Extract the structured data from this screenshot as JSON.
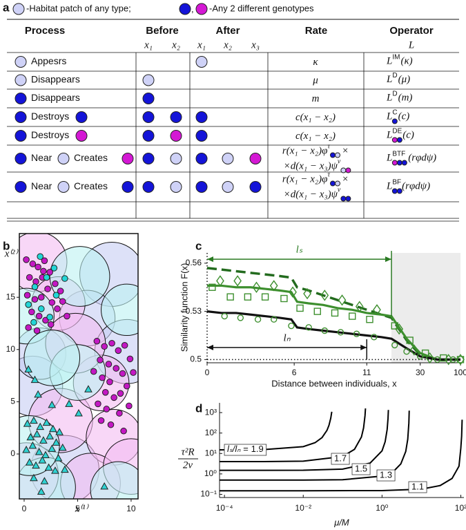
{
  "panel_labels": [
    "a",
    "b",
    "c",
    "d"
  ],
  "legend_note": {
    "text1": "-Habitat patch of any type;",
    "sep": ",",
    "text2": "-Any 2 different genotypes"
  },
  "table": {
    "header": [
      "Process",
      "Before",
      "After",
      "Rate",
      "Operator"
    ],
    "subheader": [
      "x₁",
      "x₂",
      "x₁",
      "x₂",
      "x₃",
      "L"
    ],
    "rows": [
      {
        "process": [
          "Appesrs"
        ],
        "rate": "κ",
        "operator": {
          "base": "L",
          "sup": "IM",
          "arg": "(κ)"
        }
      },
      {
        "process": [
          "Disappears"
        ],
        "rate": "μ",
        "operator": {
          "base": "L",
          "sup": "D",
          "arg": "(μ)"
        }
      },
      {
        "process": [
          "Disappears"
        ],
        "rate": "m",
        "operator": {
          "base": "L",
          "sup": "D",
          "arg": "(m)"
        }
      },
      {
        "process": [
          "Destroys"
        ],
        "rate": "c(x₁ − x₂)",
        "operator": {
          "base": "L",
          "sup": "C",
          "arg": "(c)"
        }
      },
      {
        "process": [
          "Destroys"
        ],
        "rate": "c(x₁ − x₂)",
        "operator": {
          "base": "L",
          "sup": "DE",
          "arg": "(c)"
        }
      },
      {
        "process": [
          "Near",
          "Creates"
        ],
        "rate": {
          "line1": "r(x₁ − x₂)φ",
          "sup1": "τ",
          "end1": "×",
          "line2": "×d(x₁ − x₃)ψ",
          "sup2": "ν"
        },
        "operator": {
          "base": "L",
          "sup": "BTF",
          "arg": "(rφdψ)"
        }
      },
      {
        "process": [
          "Near",
          "Creates"
        ],
        "rate": {
          "line1": "r(x₁ − x₂)φ",
          "sup1": "τ",
          "end1": "×",
          "line2": "×d(x₁ − x₃)ψ",
          "sup2": "ν"
        },
        "operator": {
          "base": "L",
          "sup": "BF",
          "arg": "(rφdψ)"
        }
      }
    ]
  },
  "chart_data": [
    {
      "type": "scatter",
      "xlim": [
        -0.45,
        10.65
      ],
      "ylim": [
        -4.3,
        21.1
      ],
      "xticks": [
        0,
        5,
        10
      ],
      "yticks": [
        0,
        5,
        10,
        15
      ],
      "xlabel": "x⁽¹⁾",
      "ylabel": "x⁽²⁾",
      "patches": [
        {
          "color": "#c6cdf4",
          "x": [
            8.2,
            0.8,
            5.9,
            9.6,
            3.8,
            1.5
          ],
          "y": [
            17.2,
            6.5,
            13.0,
            9.8,
            -1.5,
            9.6
          ],
          "r": [
            3.0,
            2.8,
            2.6,
            3.0,
            3.2,
            2.4
          ]
        },
        {
          "color": "#f3bdf2",
          "x": [
            1.2,
            3.4,
            8.4,
            6.2,
            10.0,
            7.2,
            3.2,
            4.8,
            0.2
          ],
          "y": [
            18.4,
            3.2,
            1.6,
            -2.8,
            -1.2,
            6.8,
            14.4,
            10.6,
            -2.0
          ],
          "r": [
            2.8,
            3.0,
            2.6,
            2.8,
            2.6,
            2.6,
            2.5,
            2.8,
            3.0
          ]
        },
        {
          "color": "#bdf1f1",
          "x": [
            0.2,
            5.0,
            2.0,
            8.8,
            0.5,
            5.2,
            9.6,
            2.6
          ],
          "y": [
            13.2,
            7.8,
            -3.2,
            -3.4,
            0.8,
            17.0,
            13.8,
            9.2
          ],
          "r": [
            2.6,
            2.6,
            2.8,
            2.6,
            2.8,
            2.8,
            2.4,
            2.6
          ]
        }
      ],
      "series": [
        {
          "marker": "circle",
          "color": "#c318c3",
          "x": [
            0.2,
            0.8,
            1.3,
            1.9,
            2.4,
            0.5,
            1.1,
            1.7,
            2.2,
            2.9,
            3.4,
            0.3,
            1.0,
            1.6,
            2.6,
            3.1,
            0.7,
            1.4,
            2.0,
            3.6,
            0.4,
            1.2,
            2.5,
            4.0,
            1.8,
            6.8,
            7.5,
            8.2,
            8.8,
            9.4,
            9.9,
            7.1,
            7.9,
            8.6,
            9.2,
            6.5,
            7.3,
            8.0,
            9.6,
            10.2,
            7.6,
            8.4,
            9.0,
            6.9,
            7.7,
            8.9,
            9.8,
            7.2,
            8.1,
            9.3
          ],
          "y": [
            18.6,
            18.2,
            17.9,
            18.5,
            17.4,
            16.9,
            16.5,
            16.9,
            15.8,
            16.3,
            15.6,
            15.2,
            14.8,
            15.0,
            14.5,
            13.9,
            13.6,
            13.2,
            12.8,
            14.6,
            12.1,
            11.8,
            12.4,
            13.2,
            17.5,
            10.8,
            10.3,
            10.6,
            9.9,
            10.4,
            9.1,
            9.0,
            8.6,
            8.2,
            7.7,
            7.9,
            7.3,
            6.9,
            6.5,
            7.8,
            5.9,
            5.4,
            5.8,
            4.8,
            4.3,
            3.9,
            4.6,
            3.2,
            2.8,
            2.2
          ]
        },
        {
          "marker": "circle",
          "color": "#22d6d6",
          "x": [
            1.0,
            2.1,
            2.8,
            0.4,
            1.6,
            3.0,
            2.4,
            0.9,
            3.8,
            1.5
          ],
          "y": [
            16.0,
            16.9,
            17.8,
            14.3,
            13.9,
            15.2,
            13.1,
            12.6,
            16.8,
            18.9
          ]
        },
        {
          "marker": "triangle",
          "color": "#2fd2d2",
          "x": [
            0.3,
            0.9,
            1.5,
            2.1,
            2.7,
            3.3,
            0.6,
            1.2,
            1.8,
            2.4,
            3.0,
            3.6,
            0.2,
            0.8,
            1.4,
            2.0,
            2.6,
            3.2,
            0.5,
            1.1,
            1.7,
            2.3,
            2.9,
            0.9,
            1.9,
            1.3,
            4.2,
            5.1,
            6.0,
            1.0,
            2.6,
            0.4,
            7.5,
            3.8,
            1.6
          ],
          "y": [
            2.9,
            3.2,
            2.6,
            3.0,
            2.4,
            2.1,
            1.6,
            1.9,
            1.3,
            1.7,
            1.1,
            0.6,
            0.4,
            0.8,
            0.2,
            -0.1,
            0.5,
            -0.4,
            -0.8,
            -1.1,
            -0.6,
            -1.3,
            -1.6,
            -2.3,
            -2.6,
            5.7,
            4.8,
            3.9,
            6.2,
            7.1,
            4.7,
            8.1,
            -3.1,
            -1.5,
            -3.6
          ]
        }
      ]
    },
    {
      "type": "line",
      "xscale": "linear-log",
      "xlim": [
        0,
        100
      ],
      "ylim": [
        0.498,
        0.5664
      ],
      "xticks": [
        0,
        6,
        11,
        30,
        100
      ],
      "yticks": [
        0.5,
        0.53,
        0.56
      ],
      "shade_from": 12.7,
      "ref_lines": {
        "x": 0,
        "y": 0.5
      },
      "xlabel": "Distance between individuals, x",
      "ylabel": "Similarity function F(x)",
      "series": [
        {
          "style": "dashed",
          "color": "#236b1e",
          "x": [
            0,
            1,
            2,
            3,
            4,
            5,
            5.8,
            6.2,
            7,
            8,
            9,
            10,
            11,
            12,
            12.7,
            20,
            30,
            50,
            100
          ],
          "values": [
            0.557,
            0.556,
            0.555,
            0.554,
            0.553,
            0.552,
            0.551,
            0.545,
            0.543,
            0.54,
            0.537,
            0.534,
            0.531,
            0.528,
            0.526,
            0.512,
            0.503,
            0.5,
            0.5
          ]
        },
        {
          "style": "solid",
          "color": "#3d8f2e",
          "x": [
            0,
            1,
            2,
            3,
            4,
            5,
            5.8,
            6.2,
            7,
            8,
            9,
            10,
            11,
            12,
            12.7,
            20,
            30,
            50,
            100
          ],
          "values": [
            0.546,
            0.546,
            0.545,
            0.545,
            0.544,
            0.543,
            0.542,
            0.536,
            0.535,
            0.534,
            0.532,
            0.531,
            0.529,
            0.528,
            0.527,
            0.513,
            0.504,
            0.5,
            0.5
          ]
        },
        {
          "style": "solid",
          "color": "#111111",
          "x": [
            0,
            1,
            2,
            3,
            4,
            5,
            5.8,
            6.2,
            7,
            8,
            9,
            10,
            11,
            12,
            12.7,
            20,
            30,
            50,
            100
          ],
          "values": [
            0.53,
            0.529,
            0.529,
            0.528,
            0.527,
            0.526,
            0.525,
            0.52,
            0.519,
            0.518,
            0.517,
            0.516,
            0.515,
            0.514,
            0.513,
            0.507,
            0.502,
            0.5,
            0.5
          ]
        },
        {
          "style": "diamond",
          "color": "#3d8f2e",
          "x": [
            0.9,
            2.1,
            3.4,
            4.6,
            5.9,
            6.9,
            8.1,
            9.3,
            10.5,
            11.7,
            16,
            25,
            40,
            70,
            100
          ],
          "values": [
            0.549,
            0.549,
            0.545,
            0.546,
            0.542,
            0.541,
            0.54,
            0.537,
            0.533,
            0.531,
            0.519,
            0.506,
            0.501,
            0.5,
            0.5
          ]
        },
        {
          "style": "square",
          "color": "#3d8f2e",
          "x": [
            0.35,
            1.6,
            2.8,
            4.0,
            5.3,
            6.4,
            7.6,
            8.8,
            10,
            11.2,
            14,
            22,
            35,
            60,
            100
          ],
          "values": [
            0.545,
            0.539,
            0.539,
            0.539,
            0.538,
            0.532,
            0.53,
            0.529,
            0.527,
            0.525,
            0.521,
            0.512,
            0.504,
            0.501,
            0.5
          ]
        },
        {
          "style": "circle",
          "color": "#3d8f2e",
          "x": [
            1.2,
            2.3,
            3.5,
            4.6,
            5.8,
            7,
            8.1,
            9.2,
            10.3,
            11.5,
            14,
            20,
            30,
            50,
            80
          ],
          "values": [
            0.527,
            0.526,
            0.525,
            0.525,
            0.521,
            0.52,
            0.518,
            0.517,
            0.516,
            0.514,
            0.509,
            0.505,
            0.502,
            0.5,
            0.5
          ]
        }
      ],
      "annotations": [
        {
          "label": "lₛ",
          "color": "#2a7a22",
          "x": [
            0,
            12.7
          ],
          "y": 0.5625,
          "drop_to": 0.527
        },
        {
          "label": "lₙ",
          "color": "#111111",
          "x": [
            0,
            11
          ],
          "y": 0.5075,
          "drop_to": 0.5
        }
      ]
    },
    {
      "type": "line",
      "xscale": "log",
      "yscale": "log",
      "color": "#000000",
      "xlim": [
        7.5e-05,
        120
      ],
      "ylim": [
        0.07,
        3000
      ],
      "xticks": [
        {
          "value": 0.0001,
          "label": "10⁻⁴"
        },
        {
          "value": 0.01,
          "label": "10⁻²"
        },
        {
          "value": 1,
          "label": "10⁰"
        },
        {
          "value": 100,
          "label": "10²"
        }
      ],
      "yticks": [
        {
          "value": 0.1,
          "label": "10⁻¹"
        },
        {
          "value": 1,
          "label": "10⁰"
        },
        {
          "value": 10,
          "label": "10¹"
        },
        {
          "value": 100,
          "label": "10²"
        },
        {
          "value": 1000,
          "label": "10³"
        }
      ],
      "xlabel": "μ/M",
      "ylabel": {
        "numerator": "τ²R",
        "denominator": "2ν"
      },
      "ratio_label": "lₛ/lₙ =",
      "series": [
        {
          "name": "1.9",
          "x": [
            7.5e-05,
            0.001,
            0.01,
            0.02,
            0.03,
            0.04,
            0.045,
            0.05,
            0.053
          ],
          "values": [
            15,
            15.5,
            21.6,
            33.8,
            60,
            135,
            240,
            540,
            1100
          ]
        },
        {
          "name": "1.7",
          "x": [
            7.5e-05,
            0.001,
            0.01,
            0.1,
            0.2,
            0.3,
            0.34,
            0.37,
            0.38
          ],
          "values": [
            4,
            4,
            4.2,
            7.1,
            16,
            64,
            178,
            711,
            1600
          ]
        },
        {
          "name": "1.5",
          "x": [
            7.5e-05,
            0.001,
            0.01,
            0.1,
            0.5,
            1,
            1.2,
            1.35,
            1.42,
            1.45
          ],
          "values": [
            1.5,
            1.5,
            1.52,
            1.72,
            3.4,
            13.5,
            37.5,
            150,
            528,
            1350
          ]
        },
        {
          "name": "1.3",
          "x": [
            7.5e-05,
            0.01,
            0.1,
            1,
            2,
            3,
            4,
            4.5,
            4.8,
            4.9
          ],
          "values": [
            0.5,
            0.5,
            0.52,
            0.78,
            1.39,
            3.1,
            12.5,
            50,
            312,
            1250
          ]
        },
        {
          "name": "1.1",
          "x": [
            7.5e-05,
            0.01,
            1,
            10,
            30,
            60,
            90,
            100,
            105,
            108
          ],
          "values": [
            0.15,
            0.15,
            0.153,
            0.18,
            0.27,
            0.6,
            2.4,
            18,
            72,
            450
          ]
        }
      ]
    }
  ]
}
